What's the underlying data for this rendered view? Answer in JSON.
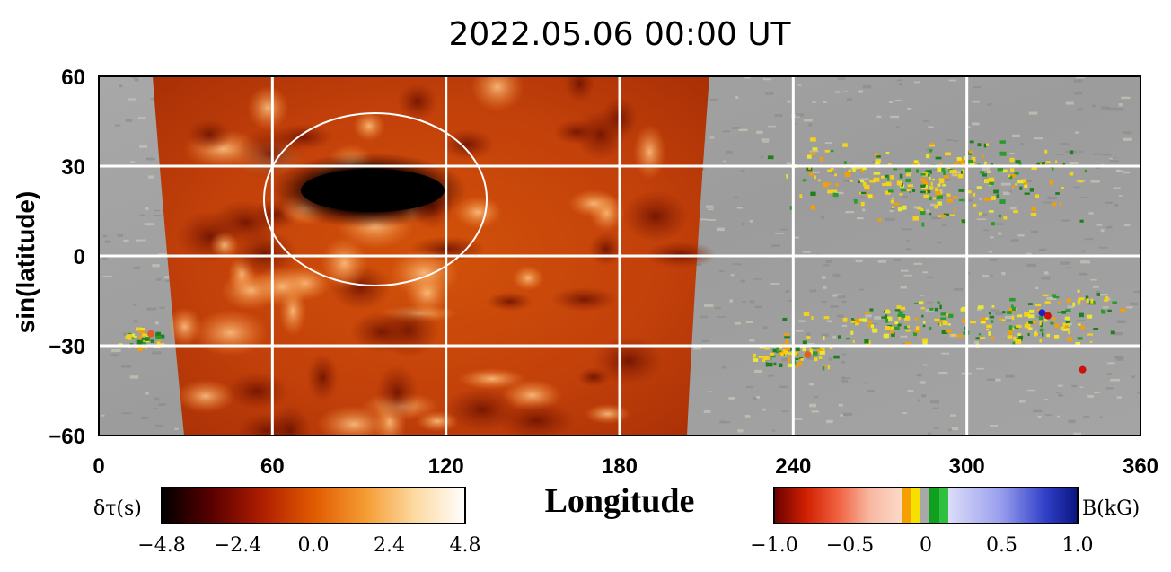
{
  "chart_data": {
    "type": "heatmap",
    "title": "2022.05.06  00:00  UT",
    "xlabel": "Longitude",
    "ylabel": "sin(latitude)",
    "xlim": [
      0,
      360
    ],
    "ylim": [
      -60,
      60
    ],
    "x_ticks": [
      0,
      60,
      120,
      180,
      240,
      300,
      360
    ],
    "y_ticks": [
      60,
      30,
      0,
      -30,
      -60
    ],
    "y_tick_labels": [
      "60",
      "30",
      "0",
      "−30",
      "−60"
    ],
    "grid": true,
    "far_side_region": {
      "lon_range": [
        20,
        210
      ],
      "quantity": "δτ (s)"
    },
    "near_side_region": {
      "quantity": "B (kG)"
    },
    "annotation": {
      "type": "ellipse",
      "center_lon": 95,
      "center_lat": 17,
      "description": "circled dark feature"
    },
    "colorbars": [
      {
        "label": "δτ(s)",
        "ticks": [
          "−4.8",
          "−2.4",
          "0.0",
          "2.4",
          "4.8"
        ],
        "range": [
          -4.8,
          4.8
        ],
        "colors": [
          "#000000",
          "#5a0000",
          "#b01e00",
          "#e05a00",
          "#f59a30",
          "#fcd9a0",
          "#ffffff"
        ]
      },
      {
        "label": "B(kG)",
        "ticks": [
          "−1.0",
          "−0.5",
          "0",
          "0.5",
          "1.0"
        ],
        "range": [
          -1.0,
          1.0
        ],
        "colors": [
          "#6a0000",
          "#d02000",
          "#f06040",
          "#f8b8a0",
          "#fcd9c8"
        ]
      }
    ]
  }
}
